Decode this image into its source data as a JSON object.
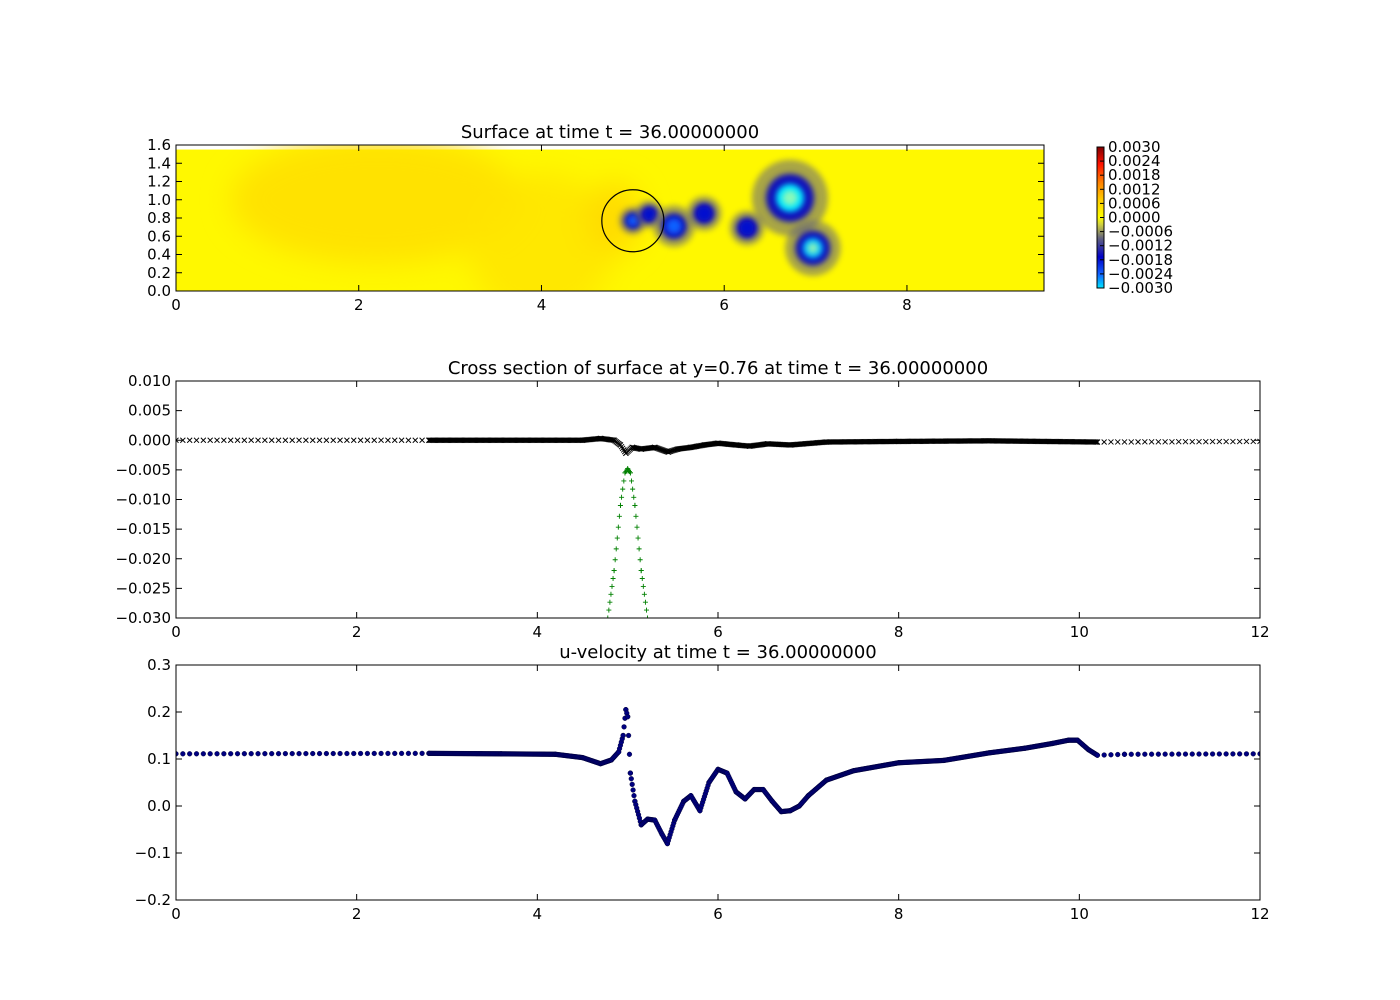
{
  "chart_data": [
    {
      "type": "heatmap",
      "title": "Surface at time t =    36.00000000",
      "xlim": [
        0,
        9.5
      ],
      "ylim": [
        0,
        1.6
      ],
      "x_ticks": [
        "0",
        "2",
        "4",
        "6",
        "8"
      ],
      "x_tick_values": [
        0,
        2,
        4,
        6,
        8
      ],
      "y_ticks": [
        "0.0",
        "0.2",
        "0.4",
        "0.6",
        "0.8",
        "1.0",
        "1.2",
        "1.4",
        "1.6"
      ],
      "y_tick_values": [
        0,
        0.2,
        0.4,
        0.6,
        0.8,
        1.0,
        1.2,
        1.4,
        1.6
      ],
      "domain_top": 1.55,
      "colorbar": {
        "min": -0.003,
        "max": 0.003,
        "tick_labels": [
          "0.0030",
          "0.0024",
          "0.0018",
          "0.0012",
          "0.0006",
          "0.0000",
          "−0.0006",
          "−0.0012",
          "−0.0018",
          "−0.0024",
          "−0.0030"
        ],
        "tick_values": [
          0.003,
          0.0024,
          0.0018,
          0.0012,
          0.0006,
          0,
          -0.0006,
          -0.0012,
          -0.0018,
          -0.0024,
          -0.003
        ]
      },
      "background_value": 0.0001,
      "warm_regions": [
        {
          "x": 2.2,
          "y": 1.0,
          "rx": 1.6,
          "ry": 0.7,
          "value": 0.0005
        },
        {
          "x": 4.0,
          "y": 0.5,
          "rx": 0.8,
          "ry": 0.8,
          "value": 0.0004
        },
        {
          "x": 4.8,
          "y": 0.8,
          "rx": 0.3,
          "ry": 0.4,
          "value": 0.0006
        }
      ],
      "vortices": [
        {
          "x": 5.0,
          "y": 0.77,
          "r": 0.08,
          "value": -0.0024
        },
        {
          "x": 5.18,
          "y": 0.84,
          "r": 0.08,
          "value": -0.0018
        },
        {
          "x": 5.45,
          "y": 0.71,
          "r": 0.12,
          "value": -0.0024
        },
        {
          "x": 5.78,
          "y": 0.85,
          "r": 0.1,
          "value": -0.0018
        },
        {
          "x": 6.25,
          "y": 0.69,
          "r": 0.1,
          "value": -0.0018
        },
        {
          "x": 6.72,
          "y": 1.02,
          "r": 0.22,
          "value": -0.003
        },
        {
          "x": 6.97,
          "y": 0.47,
          "r": 0.16,
          "value": -0.0028
        }
      ],
      "obstacle": {
        "x": 5.0,
        "y": 0.77,
        "r": 0.34
      }
    },
    {
      "type": "scatter",
      "title": "Cross section of surface at y=0.76 at time t =    36.00000000",
      "xlim": [
        0,
        12
      ],
      "ylim": [
        -0.03,
        0.01
      ],
      "x_ticks": [
        "0",
        "2",
        "4",
        "6",
        "8",
        "10",
        "12"
      ],
      "x_tick_values": [
        0,
        2,
        4,
        6,
        8,
        10,
        12
      ],
      "y_ticks": [
        "0.010",
        "0.005",
        "0.000",
        "−0.005",
        "−0.010",
        "−0.015",
        "−0.020",
        "−0.025",
        "−0.030"
      ],
      "y_tick_values": [
        0.01,
        0.005,
        0,
        -0.005,
        -0.01,
        -0.015,
        -0.02,
        -0.025,
        -0.03
      ],
      "series": [
        {
          "marker": "x",
          "color": "#000000",
          "x": [
            0,
            2.8,
            4.5,
            4.7,
            4.85,
            4.92,
            4.98,
            5.05,
            5.15,
            5.3,
            5.45,
            5.55,
            5.7,
            5.85,
            6.0,
            6.2,
            6.35,
            6.55,
            6.8,
            7.2,
            8.0,
            9.0,
            10.2,
            12.0
          ],
          "y": [
            0.0,
            0.0,
            0.0,
            0.0003,
            0.0,
            -0.0008,
            -0.0022,
            -0.0012,
            -0.0015,
            -0.0012,
            -0.002,
            -0.0015,
            -0.0012,
            -0.0008,
            -0.0005,
            -0.0008,
            -0.001,
            -0.0006,
            -0.0008,
            -0.0003,
            -0.0002,
            -0.0001,
            -0.0003,
            -0.0002
          ]
        },
        {
          "marker": "+",
          "color": "#008000",
          "x": [
            4.78,
            4.85,
            4.92,
            4.97,
            5.0,
            5.03,
            5.08,
            5.15,
            5.22
          ],
          "y": [
            -0.03,
            -0.022,
            -0.011,
            -0.0055,
            -0.0048,
            -0.0055,
            -0.011,
            -0.022,
            -0.03
          ]
        }
      ]
    },
    {
      "type": "scatter",
      "title": "u-velocity at time t =    36.00000000",
      "xlim": [
        0,
        12
      ],
      "ylim": [
        -0.2,
        0.3
      ],
      "x_ticks": [
        "0",
        "2",
        "4",
        "6",
        "8",
        "10",
        "12"
      ],
      "x_tick_values": [
        0,
        2,
        4,
        6,
        8,
        10,
        12
      ],
      "y_ticks": [
        "0.3",
        "0.2",
        "0.1",
        "0.0",
        "−0.1",
        "−0.2"
      ],
      "y_tick_values": [
        0.3,
        0.2,
        0.1,
        0.0,
        -0.1,
        -0.2
      ],
      "series": [
        {
          "marker": "o",
          "color": "#000080",
          "x": [
            0,
            2.8,
            3.6,
            4.2,
            4.5,
            4.7,
            4.82,
            4.9,
            4.95,
            4.98,
            5.0,
            5.03,
            5.08,
            5.15,
            5.22,
            5.3,
            5.38,
            5.44,
            5.52,
            5.62,
            5.7,
            5.8,
            5.9,
            6.0,
            6.1,
            6.2,
            6.3,
            6.4,
            6.5,
            6.6,
            6.7,
            6.8,
            6.9,
            7.0,
            7.2,
            7.5,
            8.0,
            8.5,
            9.0,
            9.4,
            9.7,
            9.88,
            9.98,
            10.1,
            10.2,
            10.5,
            12.0
          ],
          "y": [
            0.111,
            0.112,
            0.111,
            0.11,
            0.103,
            0.09,
            0.098,
            0.115,
            0.15,
            0.205,
            0.19,
            0.07,
            0.01,
            -0.04,
            -0.028,
            -0.03,
            -0.06,
            -0.08,
            -0.03,
            0.01,
            0.022,
            -0.01,
            0.05,
            0.078,
            0.07,
            0.03,
            0.015,
            0.035,
            0.035,
            0.01,
            -0.012,
            -0.01,
            0.0,
            0.022,
            0.055,
            0.075,
            0.092,
            0.097,
            0.113,
            0.123,
            0.133,
            0.14,
            0.14,
            0.12,
            0.108,
            0.11,
            0.111
          ]
        }
      ]
    }
  ]
}
